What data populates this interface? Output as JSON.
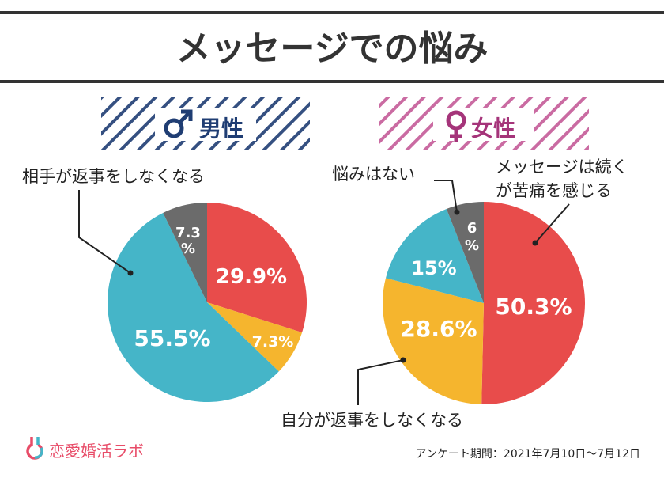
{
  "title": "メッセージでの悩み",
  "colors": {
    "red": "#e84c4b",
    "yellow": "#f5b52e",
    "teal": "#45b5c8",
    "gray": "#6b6b6b",
    "male": "#1f3d73",
    "female": "#a5347a",
    "brand": "#e84c68"
  },
  "chart_data": [
    {
      "type": "pie",
      "title": "男性",
      "icon": "male-symbol",
      "slices": [
        {
          "label": "29.9%",
          "value": 29.9,
          "color": "#e84c4b"
        },
        {
          "label": "7.3%",
          "value": 7.3,
          "color": "#f5b52e"
        },
        {
          "label": "55.5%",
          "value": 55.5,
          "color": "#45b5c8",
          "annotation": "相手が返事をしなくなる"
        },
        {
          "label_line1": "7.3",
          "label_line2": "%",
          "value": 7.3,
          "color": "#6b6b6b"
        }
      ]
    },
    {
      "type": "pie",
      "title": "女性",
      "icon": "female-symbol",
      "slices": [
        {
          "label": "50.3%",
          "value": 50.3,
          "color": "#e84c4b",
          "annotation_line1": "メッセージは続く",
          "annotation_line2": "が苦痛を感じる"
        },
        {
          "label": "28.6%",
          "value": 28.6,
          "color": "#f5b52e",
          "annotation": "自分が返事をしなくなる"
        },
        {
          "label": "15%",
          "value": 15,
          "color": "#45b5c8"
        },
        {
          "label_line1": "6",
          "label_line2": "%",
          "value": 6,
          "color": "#6b6b6b",
          "annotation": "悩みはない"
        }
      ]
    }
  ],
  "footer": {
    "brand": "恋愛婚活ラボ",
    "period": "アンケート期間：2021年7月10日～7月12日"
  }
}
